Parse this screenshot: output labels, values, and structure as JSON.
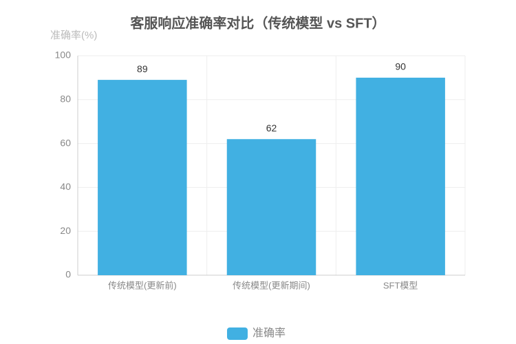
{
  "chart_data": {
    "type": "bar",
    "title": "客服响应准确率对比（传统模型 vs SFT）",
    "y_label": "准确率(%)",
    "categories": [
      "传统模型(更新前)",
      "传统模型(更新期间)",
      "SFT模型"
    ],
    "series": [
      {
        "name": "准确率",
        "color": "#41b0e2",
        "values": [
          89,
          62,
          90
        ]
      }
    ],
    "ylim": [
      0,
      100
    ],
    "yticks": [
      0,
      20,
      40,
      60,
      80,
      100
    ],
    "grid": true,
    "legend": "bottom"
  }
}
